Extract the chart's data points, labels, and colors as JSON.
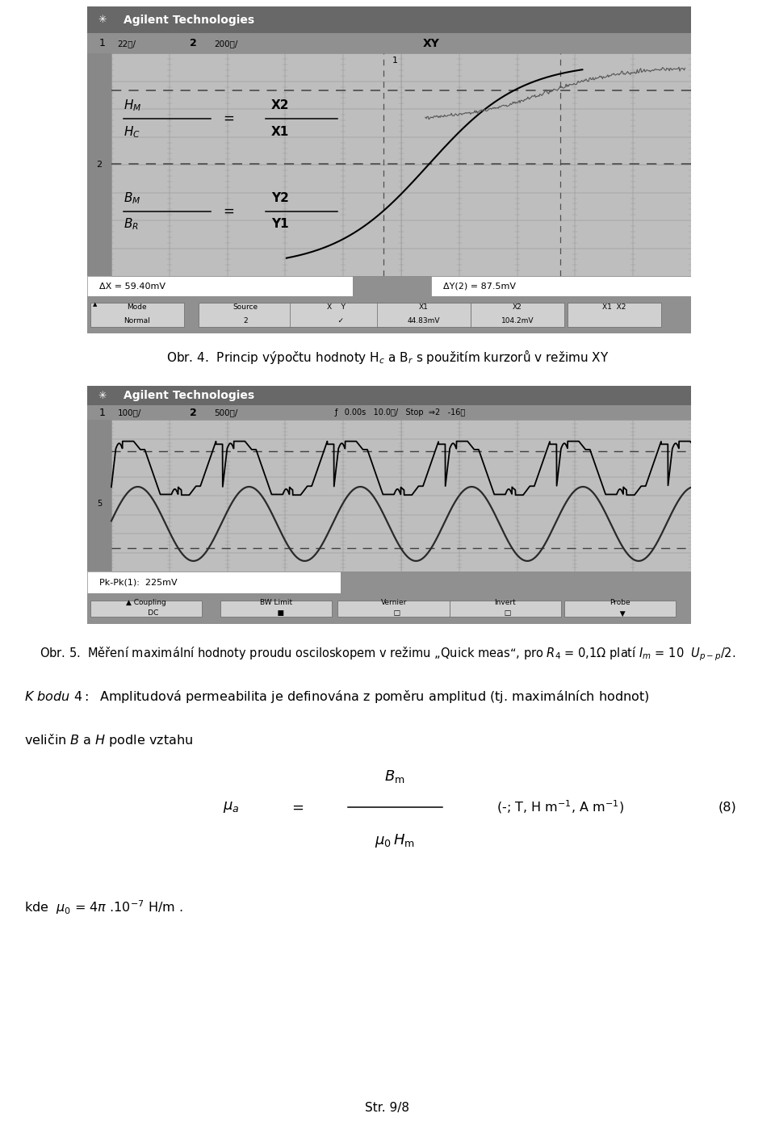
{
  "background_color": "#ffffff",
  "page_width": 9.6,
  "page_height": 13.9,
  "caption1": "Obr. 4.  Princip výpočtu hodnoty H$_c$ a B$_r$ s použitím kurzorů v režimu XY",
  "caption2": "Obr. 5.  Měření maximální hodnoty proudu osciloskopem v režimu „Quick meas“, pro $R_4$ = 0,1Ω platí $I_m$ = 10  $U_{p-p}$/2.",
  "kbodu_line1": "$\\mathbf{\\mathit{K\\ bodu\\ 4:}}$  Amplitudová permeabilita je definována z poměru amplitud (tj. maximálních hodnot)",
  "kbodu_line2": "veličin $B$ a $H$ podle vztahu",
  "formula_number": "(8)",
  "kde_line": "kde  $\\mu_0$ = 4$\\pi$ .10$^{-7}$ H/m .",
  "page_number": "Str. 9/8",
  "osc1_header": "Agilent Technologies",
  "osc1_chan": "1  22㎡/   2  200㎡/",
  "osc1_mode": "XY",
  "osc1_footer_left": "ΔX = 59.40mV",
  "osc1_footer_right": "ΔY(2) = 87.5mV",
  "osc2_header": "Agilent Technologies",
  "osc2_chan": "1  100㎡/   2  500㎡/",
  "osc2_right": "ƒ   0.00s   10.0㎡/   Stop  ⇲2   -16㎡",
  "osc2_pkpk": "Pk-Pk(1):  225mV",
  "header_bg": "#686868",
  "chan_bg": "#909090",
  "grid_bg": "#bebebe",
  "left_strip_bg": "#888888",
  "footer_bg": "#909090",
  "btn_bg": "#d0d0d0",
  "white": "#ffffff",
  "black": "#000000"
}
